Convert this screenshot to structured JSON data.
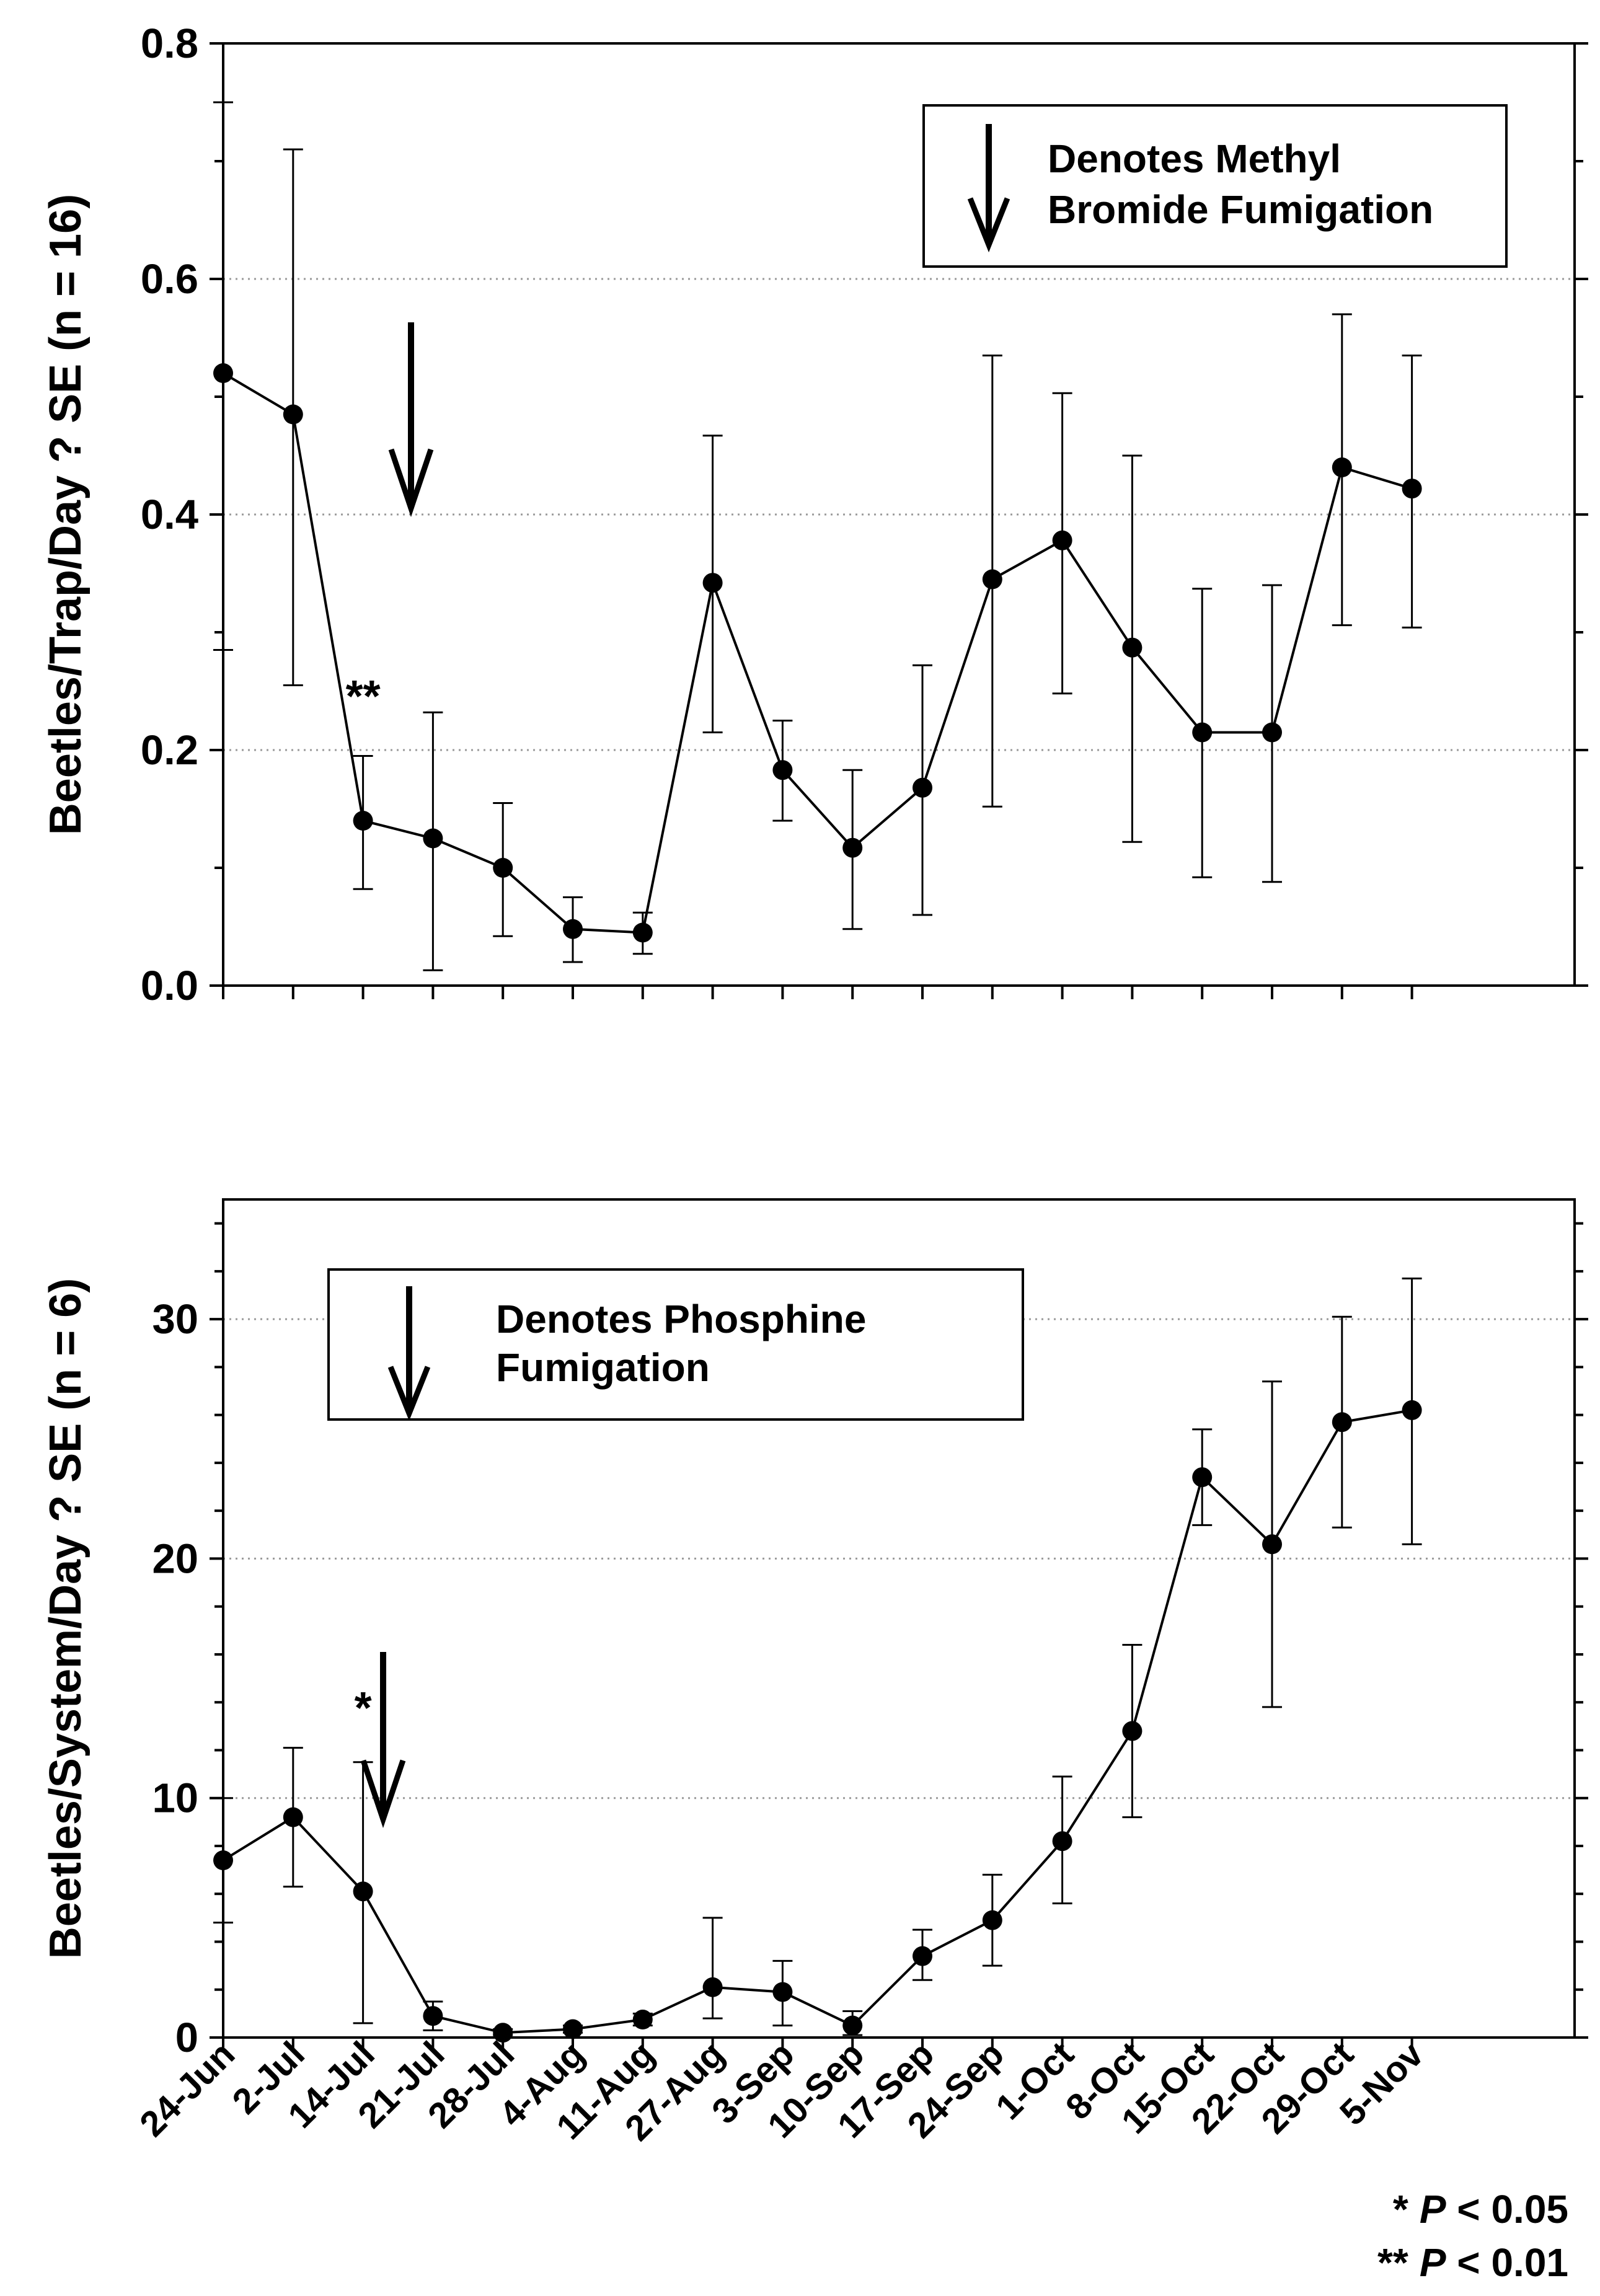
{
  "chart_data": [
    {
      "type": "line",
      "ylabel": "Beetles/Trap/Day ? SE (n = 16)",
      "ylim": [
        0,
        0.8
      ],
      "yticks": [
        "0.0",
        "0.2",
        "0.4",
        "0.6",
        "0.8"
      ],
      "grid": "horizontal dotted",
      "categories": [
        "24-Jun",
        "2-Jul",
        "14-Jul",
        "21-Jul",
        "28-Jul",
        "4-Aug",
        "11-Aug",
        "27-Aug",
        "3-Sep",
        "10-Sep",
        "17-Sep",
        "24-Sep",
        "1-Oct",
        "8-Oct",
        "15-Oct",
        "22-Oct",
        "29-Oct",
        "5-Nov"
      ],
      "values": [
        0.52,
        0.485,
        0.14,
        0.125,
        0.1,
        0.048,
        0.045,
        0.342,
        0.183,
        0.117,
        0.168,
        0.345,
        0.378,
        0.287,
        0.215,
        0.215,
        0.44,
        0.422
      ],
      "err_low": [
        0.285,
        0.255,
        0.082,
        0.013,
        0.042,
        0.02,
        0.027,
        0.215,
        0.14,
        0.048,
        0.06,
        0.152,
        0.248,
        0.122,
        0.092,
        0.088,
        0.306,
        0.304
      ],
      "err_high": [
        0.75,
        0.71,
        0.195,
        0.232,
        0.155,
        0.075,
        0.062,
        0.467,
        0.225,
        0.183,
        0.272,
        0.535,
        0.503,
        0.45,
        0.337,
        0.34,
        0.57,
        0.535
      ],
      "legend": {
        "line1": "Denotes Methyl",
        "line2": "Bromide Fumigation",
        "icon": "down-arrow-icon",
        "position": "top-right"
      },
      "fumigation_arrow_between": [
        "2-Jul",
        "14-Jul"
      ],
      "significance": {
        "category": "14-Jul",
        "label": "**"
      }
    },
    {
      "type": "line",
      "ylabel": "Beetles/System/Day ? SE (n = 6)",
      "ylim": [
        0,
        35
      ],
      "yticks": [
        "0",
        "10",
        "20",
        "30"
      ],
      "grid": "horizontal dotted",
      "categories": [
        "24-Jun",
        "2-Jul",
        "14-Jul",
        "21-Jul",
        "28-Jul",
        "4-Aug",
        "11-Aug",
        "27-Aug",
        "3-Sep",
        "10-Sep",
        "17-Sep",
        "24-Sep",
        "1-Oct",
        "8-Oct",
        "15-Oct",
        "22-Oct",
        "29-Oct",
        "5-Nov"
      ],
      "values": [
        7.4,
        9.2,
        6.1,
        0.9,
        0.2,
        0.35,
        0.75,
        2.1,
        1.9,
        0.5,
        3.4,
        4.9,
        8.2,
        12.8,
        23.4,
        20.6,
        25.7,
        26.2
      ],
      "err_low": [
        4.8,
        6.3,
        0.6,
        0.3,
        0.1,
        0.2,
        0.5,
        0.8,
        0.5,
        0.1,
        2.4,
        3.0,
        5.6,
        9.2,
        21.4,
        13.8,
        21.3,
        20.6
      ],
      "err_high": [
        10.0,
        12.1,
        11.5,
        1.5,
        0.35,
        0.5,
        1.0,
        5.0,
        3.2,
        1.1,
        4.5,
        6.8,
        10.9,
        16.4,
        25.4,
        27.4,
        30.1,
        31.7
      ],
      "legend": {
        "line1": "Denotes Phosphine",
        "line2": "Fumigation",
        "icon": "down-arrow-icon",
        "position": "top-left"
      },
      "fumigation_arrow_between": [
        "2-Jul",
        "14-Jul"
      ],
      "significance": {
        "category": "14-Jul",
        "label": "*"
      }
    }
  ],
  "footnote": {
    "line1": {
      "stars": "*",
      "p": "P",
      "rest": " < 0.05"
    },
    "line2": {
      "stars": "**",
      "p": "P",
      "rest": " < 0.01"
    }
  },
  "colors": {
    "ink": "#000000",
    "grid": "#9a9a9a",
    "background": "#ffffff"
  }
}
